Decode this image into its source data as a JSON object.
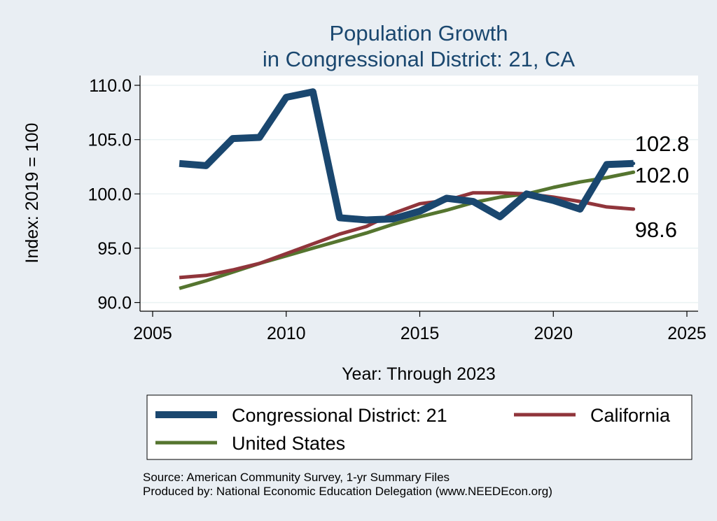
{
  "chart_data": {
    "type": "line",
    "title": [
      "Population Growth",
      "in Congressional District: 21, CA"
    ],
    "xlabel": "Year: Through 2023",
    "ylabel": "Index: 2019 = 100",
    "xlim": [
      2005,
      2025
    ],
    "ylim": [
      89.2,
      110.9
    ],
    "xticks": [
      2005,
      2010,
      2015,
      2020,
      2025
    ],
    "yticks": [
      90.0,
      95.0,
      100.0,
      105.0,
      110.0
    ],
    "ytick_labels": [
      "90.0",
      "95.0",
      "100.0",
      "105.0",
      "110.0"
    ],
    "grid": "horizontal",
    "x": [
      2006,
      2007,
      2008,
      2009,
      2010,
      2011,
      2012,
      2013,
      2014,
      2015,
      2016,
      2017,
      2018,
      2019,
      2020,
      2021,
      2022,
      2023
    ],
    "series": [
      {
        "name": "Congressional District: 21",
        "color": "#1a476f",
        "values": [
          102.8,
          102.6,
          105.1,
          105.2,
          108.9,
          109.4,
          97.8,
          97.6,
          97.7,
          98.4,
          99.6,
          99.3,
          97.9,
          100.0,
          99.4,
          98.6,
          102.7,
          102.8
        ],
        "end_label": "102.8"
      },
      {
        "name": "California",
        "color": "#90353b",
        "values": [
          92.3,
          92.5,
          93.0,
          93.6,
          94.5,
          95.4,
          96.3,
          97.0,
          98.2,
          99.1,
          99.4,
          100.1,
          100.1,
          100.0,
          99.7,
          99.3,
          98.8,
          98.6
        ],
        "end_label": "98.6"
      },
      {
        "name": "United States",
        "color": "#55752f",
        "values": [
          91.3,
          92.0,
          92.8,
          93.6,
          94.3,
          95.0,
          95.7,
          96.4,
          97.2,
          97.9,
          98.5,
          99.2,
          99.7,
          100.0,
          100.6,
          101.1,
          101.5,
          102.0
        ],
        "end_label": "102.0"
      }
    ],
    "legend": {
      "placement": "bottom",
      "entries": [
        "Congressional District: 21",
        "California",
        "United States"
      ]
    }
  },
  "notes": {
    "source": "Source: American Community Survey, 1-yr Summary Files",
    "produced": "Produced by: National Economic Education Delegation (www.NEEDEcon.org)"
  },
  "colors": {
    "background": "#e9eef3",
    "plot_background": "#ffffff",
    "grid": "#eaf2f3",
    "title": "#1a476f"
  }
}
